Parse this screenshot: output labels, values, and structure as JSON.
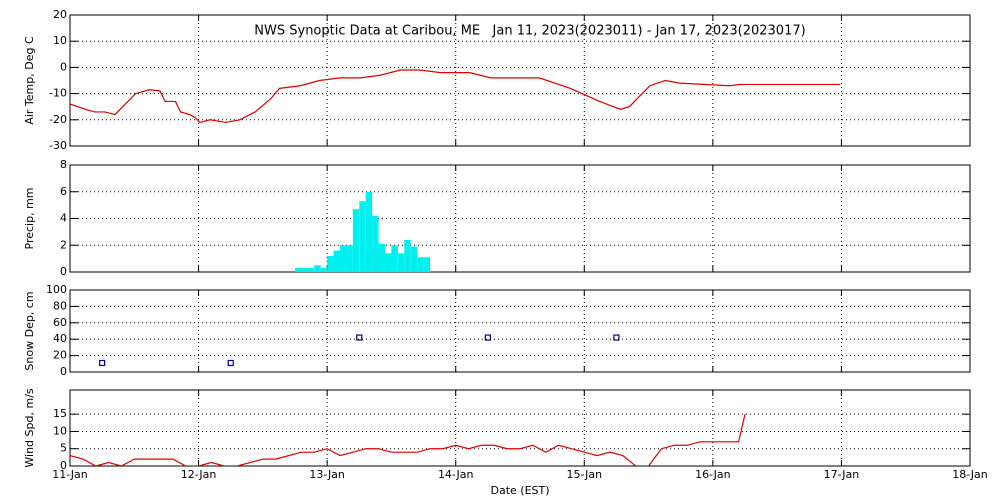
{
  "chart_data": [
    {
      "type": "line",
      "title": "NWS Synoptic Data at Caribou, ME   Jan 11, 2023(2023011) - Jan 17, 2023(2023017)",
      "y_label": "Air Temp, Deg C",
      "grid": true,
      "x": [
        0,
        0.12,
        0.19,
        0.27,
        0.35,
        0.43,
        0.51,
        0.62,
        0.7,
        0.74,
        0.82,
        0.86,
        0.93,
        0.97,
        1.01,
        1.09,
        1.21,
        1.32,
        1.44,
        1.56,
        1.63,
        1.79,
        1.94,
        2.1,
        2.26,
        2.41,
        2.57,
        2.72,
        2.88,
        3.11,
        3.27,
        3.65,
        3.89,
        4.12,
        4.28,
        4.35,
        4.51,
        4.63,
        4.74,
        5.13,
        5.21,
        5.99
      ],
      "series": [
        {
          "name": "Air Temp",
          "color": "#e00000",
          "values": [
            -14,
            -16,
            -17,
            -17,
            -18,
            -14,
            -10,
            -8.5,
            -9,
            -13,
            -13,
            -17,
            -18,
            -19,
            -21,
            -20,
            -21,
            -20,
            -17,
            -12,
            -8,
            -7,
            -5,
            -4,
            -4,
            -3,
            -1,
            -1,
            -2,
            -2,
            -4,
            -4,
            -8,
            -13,
            -16,
            -15,
            -7,
            -5,
            -6,
            -7,
            -6.5,
            -6.5
          ]
        }
      ],
      "xlim": [
        0,
        7
      ],
      "xticks": [
        0,
        1,
        2,
        3,
        4,
        5,
        6,
        7
      ],
      "ylim": [
        -30,
        20
      ],
      "yticks": [
        -30,
        -20,
        -10,
        0,
        10,
        20
      ]
    },
    {
      "type": "histogram",
      "y_label": "Precip, mm",
      "grid": true,
      "color": "#00f0f0",
      "bins": [
        1.75,
        1.8,
        1.85,
        1.9,
        1.95,
        2.0,
        2.05,
        2.1,
        2.15,
        2.2,
        2.25,
        2.3,
        2.35,
        2.4,
        2.45,
        2.5,
        2.55,
        2.6,
        2.65,
        2.7,
        2.75,
        2.8
      ],
      "values": [
        0.3,
        0.3,
        0.3,
        0.5,
        0.3,
        1.2,
        1.6,
        2.0,
        2.0,
        4.7,
        5.3,
        6.0,
        4.2,
        2.1,
        1.4,
        2.0,
        1.4,
        2.4,
        1.9,
        1.1,
        1.1
      ],
      "xlim": [
        0,
        7
      ],
      "xticks": [
        0,
        1,
        2,
        3,
        4,
        5,
        6,
        7
      ],
      "ylim": [
        0,
        8
      ],
      "yticks": [
        0,
        2,
        4,
        6,
        8
      ]
    },
    {
      "type": "scatter",
      "y_label": "Snow Dep, cm",
      "grid": true,
      "color": "#000090",
      "x": [
        0.25,
        1.25,
        2.25,
        3.25,
        4.25
      ],
      "values": [
        11,
        11,
        42,
        42,
        42
      ],
      "xlim": [
        0,
        7
      ],
      "xticks": [
        0,
        1,
        2,
        3,
        4,
        5,
        6,
        7
      ],
      "ylim": [
        0,
        100
      ],
      "yticks": [
        0,
        20,
        40,
        60,
        80,
        100
      ]
    },
    {
      "type": "line",
      "y_label": "Wind Spd, m/s",
      "x_label": "Date (EST)",
      "grid": true,
      "x": [
        0,
        0.1,
        0.2,
        0.3,
        0.4,
        0.5,
        0.6,
        0.7,
        0.8,
        0.9,
        1.0,
        1.1,
        1.2,
        1.3,
        1.4,
        1.5,
        1.6,
        1.7,
        1.8,
        1.9,
        2.0,
        2.1,
        2.2,
        2.3,
        2.4,
        2.5,
        2.6,
        2.7,
        2.8,
        2.9,
        3.0,
        3.1,
        3.2,
        3.3,
        3.4,
        3.5,
        3.6,
        3.7,
        3.8,
        3.9,
        4.0,
        4.1,
        4.2,
        4.3,
        4.4,
        4.5,
        4.6,
        4.7,
        4.8,
        4.9,
        5.0,
        5.1,
        5.2,
        5.25
      ],
      "series": [
        {
          "name": "Wind Spd",
          "color": "#e00000",
          "values": [
            3,
            2,
            0,
            1,
            0,
            2,
            2,
            2,
            2,
            0,
            0,
            1,
            0,
            0,
            1,
            2,
            2,
            3,
            4,
            4,
            5,
            3,
            4,
            5,
            5,
            4,
            4,
            4,
            5,
            5,
            6,
            5,
            6,
            6,
            5,
            5,
            6,
            4,
            6,
            5,
            4,
            3,
            4,
            3,
            0,
            0,
            5,
            6,
            6,
            7,
            7,
            7,
            7,
            15
          ]
        }
      ],
      "xlim": [
        0,
        7
      ],
      "xticks": [
        {
          "value": 0,
          "label": "11-Jan"
        },
        {
          "value": 1,
          "label": "12-Jan"
        },
        {
          "value": 2,
          "label": "13-Jan"
        },
        {
          "value": 3,
          "label": "14-Jan"
        },
        {
          "value": 4,
          "label": "15-Jan"
        },
        {
          "value": 5,
          "label": "16-Jan"
        },
        {
          "value": 6,
          "label": "17-Jan"
        },
        {
          "value": 7,
          "label": "18-Jan"
        }
      ],
      "ylim": [
        0,
        22
      ],
      "yticks": [
        0,
        5,
        10,
        15
      ]
    }
  ]
}
